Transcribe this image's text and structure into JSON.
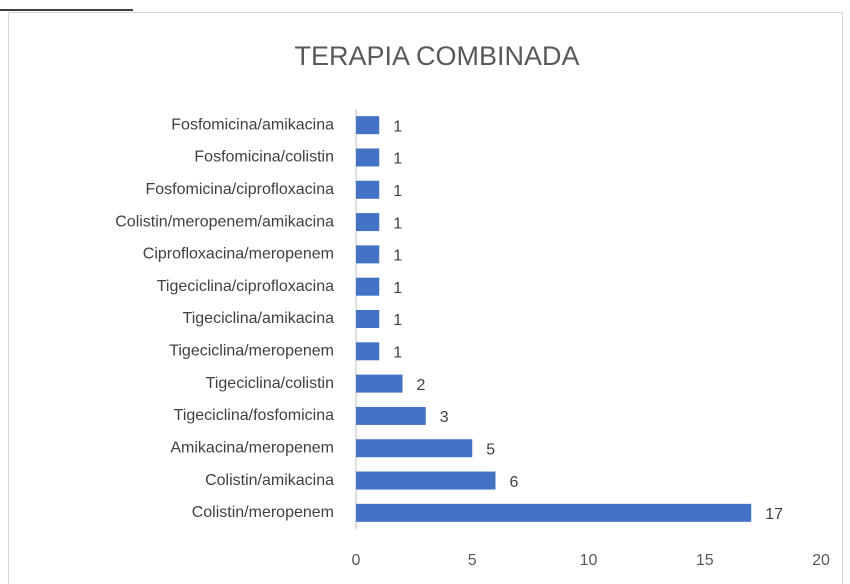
{
  "chart_data": {
    "type": "bar",
    "orientation": "horizontal",
    "title": "TERAPIA COMBINADA",
    "categories": [
      "Fosfomicina/amikacina",
      "Fosfomicina/colistin",
      "Fosfomicina/ciprofloxacina",
      "Colistin/meropenem/amikacina",
      "Ciprofloxacina/meropenem",
      "Tigeciclina/ciprofloxacina",
      "Tigeciclina/amikacina",
      "Tigeciclina/meropenem",
      "Tigeciclina/colistin",
      "Tigeciclina/fosfomicina",
      "Amikacina/meropenem",
      "Colistin/amikacina",
      "Colistin/meropenem"
    ],
    "values": [
      1,
      1,
      1,
      1,
      1,
      1,
      1,
      1,
      2,
      3,
      5,
      6,
      17
    ],
    "color": "#4472c4",
    "xlim": [
      0,
      20
    ],
    "xticks": [
      0,
      5,
      10,
      15,
      20
    ],
    "grid": false
  }
}
